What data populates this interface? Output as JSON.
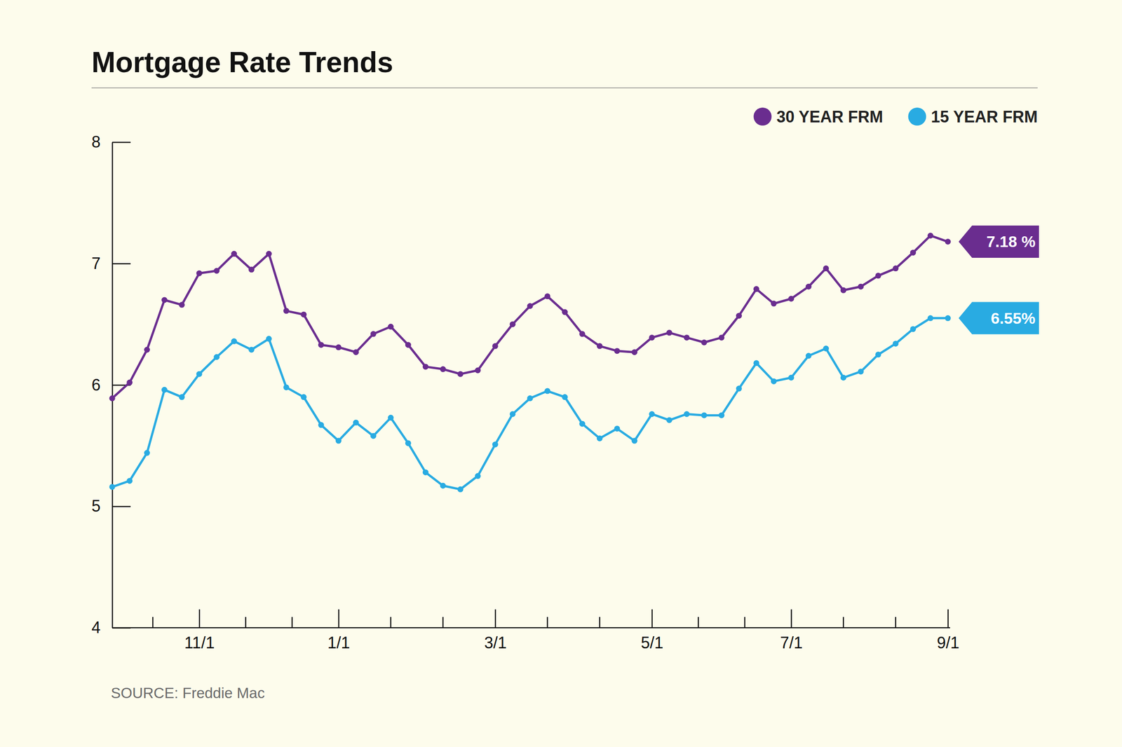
{
  "chart_data": {
    "type": "line",
    "title": "Mortgage Rate Trends",
    "source": "SOURCE: Freddie Mac",
    "legend": "top-right",
    "categories": [
      null,
      null,
      null,
      null,
      null,
      "11/1",
      null,
      null,
      null,
      null,
      null,
      null,
      null,
      "1/1",
      null,
      null,
      null,
      null,
      null,
      null,
      null,
      null,
      "3/1",
      null,
      null,
      null,
      null,
      null,
      null,
      null,
      null,
      "5/1",
      null,
      null,
      null,
      null,
      null,
      null,
      null,
      "7/1",
      null,
      null,
      null,
      null,
      null,
      null,
      null,
      null,
      "9/1"
    ],
    "ylim": [
      4,
      8
    ],
    "yticks": [
      4,
      5,
      6,
      7,
      8
    ],
    "series": [
      {
        "name": "30 YEAR FRM",
        "color": "#6a2d8f",
        "marker": "circle",
        "values": [
          5.89,
          6.02,
          6.29,
          6.7,
          6.66,
          6.92,
          6.94,
          7.08,
          6.95,
          7.08,
          6.61,
          6.58,
          6.33,
          6.31,
          6.27,
          6.42,
          6.48,
          6.33,
          6.15,
          6.13,
          6.09,
          6.12,
          6.32,
          6.5,
          6.65,
          6.73,
          6.6,
          6.42,
          6.32,
          6.28,
          6.27,
          6.39,
          6.43,
          6.39,
          6.35,
          6.39,
          6.57,
          6.79,
          6.67,
          6.71,
          6.81,
          6.96,
          6.78,
          6.81,
          6.9,
          6.96,
          7.09,
          7.23,
          7.18
        ],
        "value_labels": [
          null,
          null,
          null,
          null,
          null,
          null,
          null,
          null,
          null,
          null,
          null,
          null,
          null,
          null,
          null,
          null,
          null,
          null,
          null,
          null,
          null,
          null,
          null,
          null,
          null,
          null,
          null,
          null,
          null,
          null,
          null,
          null,
          null,
          null,
          null,
          null,
          null,
          null,
          null,
          null,
          null,
          null,
          null,
          null,
          null,
          null,
          null,
          null,
          "7.18 %"
        ]
      },
      {
        "name": "15 YEAR FRM",
        "color": "#29abe2",
        "marker": "circle",
        "values": [
          5.16,
          5.21,
          5.44,
          5.96,
          5.9,
          6.09,
          6.23,
          6.36,
          6.29,
          6.38,
          5.98,
          5.9,
          5.67,
          5.54,
          5.69,
          5.58,
          5.73,
          5.52,
          5.28,
          5.17,
          5.14,
          5.25,
          5.51,
          5.76,
          5.89,
          5.95,
          5.9,
          5.68,
          5.56,
          5.64,
          5.54,
          5.76,
          5.71,
          5.76,
          5.75,
          5.75,
          5.97,
          6.18,
          6.03,
          6.06,
          6.24,
          6.3,
          6.06,
          6.11,
          6.25,
          6.34,
          6.46,
          6.55,
          6.55
        ],
        "value_labels": [
          null,
          null,
          null,
          null,
          null,
          null,
          null,
          null,
          null,
          null,
          null,
          null,
          null,
          null,
          null,
          null,
          null,
          null,
          null,
          null,
          null,
          null,
          null,
          null,
          null,
          null,
          null,
          null,
          null,
          null,
          null,
          null,
          null,
          null,
          null,
          null,
          null,
          null,
          null,
          null,
          null,
          null,
          null,
          null,
          null,
          null,
          null,
          null,
          "6.55%"
        ]
      }
    ]
  }
}
